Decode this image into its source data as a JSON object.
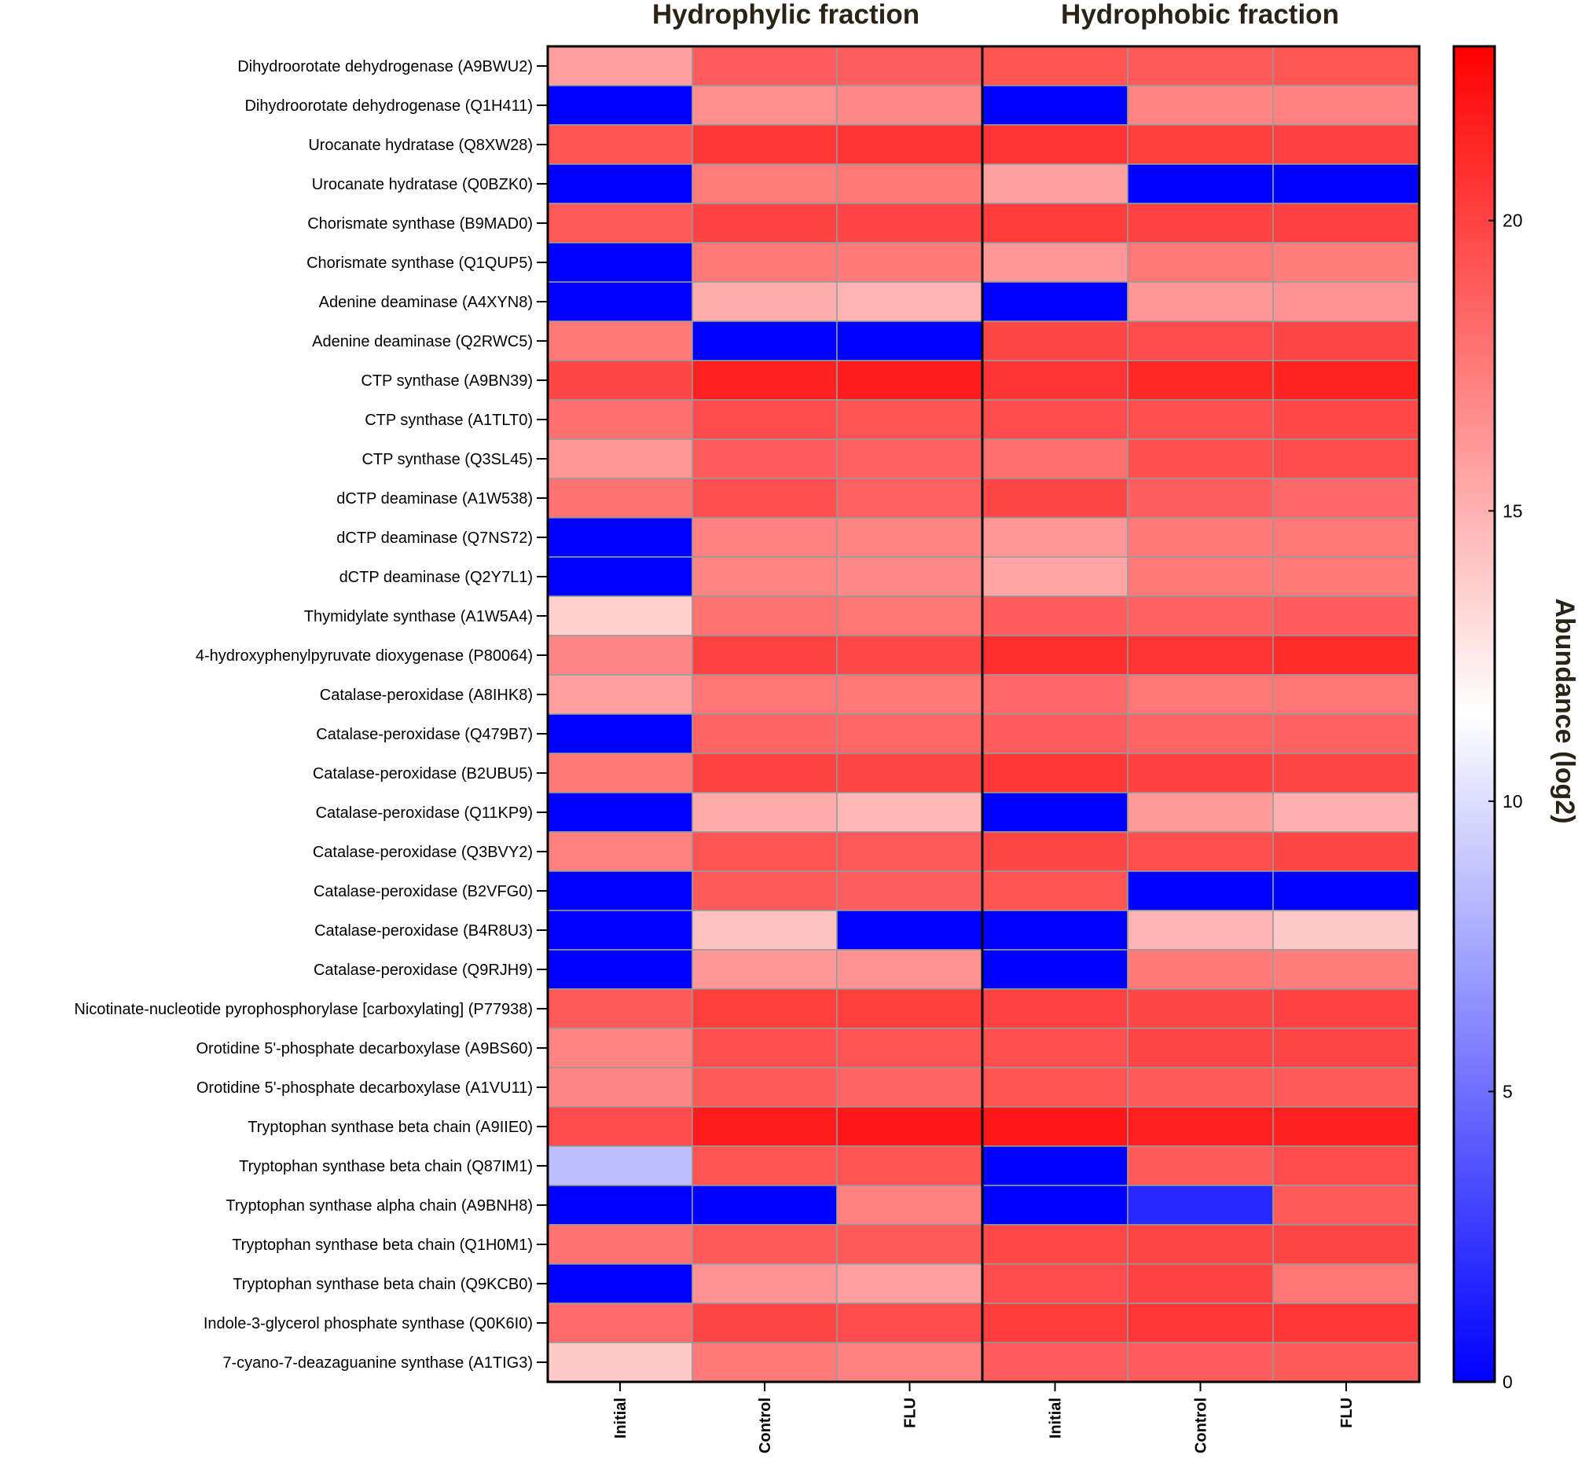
{
  "colors": {
    "low": "#0000ff",
    "mid": "#ffffff",
    "high": "#ff0000",
    "cell_border": "#999999",
    "frame": "#000000"
  },
  "chart_data": {
    "type": "heatmap",
    "groups": [
      {
        "name": "Hydrophylic fraction",
        "columns": [
          "Initial",
          "Control",
          "FLU"
        ]
      },
      {
        "name": "Hydrophobic fraction",
        "columns": [
          "Initial",
          "Control",
          "FLU"
        ]
      }
    ],
    "columns": [
      "Initial",
      "Control",
      "FLU",
      "Initial",
      "Control",
      "FLU"
    ],
    "rows": [
      "Dihydroorotate dehydrogenase (A9BWU2)",
      "Dihydroorotate dehydrogenase (Q1H411)",
      "Urocanate hydratase (Q8XW28)",
      "Urocanate hydratase (Q0BZK0)",
      "Chorismate synthase (B9MAD0)",
      "Chorismate synthase (Q1QUP5)",
      "Adenine deaminase (A4XYN8)",
      "Adenine deaminase (Q2RWC5)",
      "CTP synthase (A9BN39)",
      "CTP synthase (A1TLT0)",
      "CTP synthase (Q3SL45)",
      "dCTP deaminase (A1W538)",
      "dCTP deaminase (Q7NS72)",
      "dCTP deaminase (Q2Y7L1)",
      "Thymidylate synthase (A1W5A4)",
      "4-hydroxyphenylpyruvate dioxygenase (P80064)",
      "Catalase-peroxidase (A8IHK8)",
      "Catalase-peroxidase (Q479B7)",
      "Catalase-peroxidase (B2UBU5)",
      "Catalase-peroxidase (Q11KP9)",
      "Catalase-peroxidase (Q3BVY2)",
      "Catalase-peroxidase (B2VFG0)",
      "Catalase-peroxidase (B4R8U3)",
      "Catalase-peroxidase (Q9RJH9)",
      "Nicotinate-nucleotide pyrophosphorylase [carboxylating] (P77938)",
      "Orotidine 5'-phosphate decarboxylase (A9BS60)",
      "Orotidine 5'-phosphate decarboxylase (A1VU11)",
      "Tryptophan synthase beta chain (A9IIE0)",
      "Tryptophan synthase beta chain (Q87IM1)",
      "Tryptophan synthase alpha chain (A9BNH8)",
      "Tryptophan synthase beta chain (Q1H0M1)",
      "Tryptophan synthase beta chain (Q9KCB0)",
      "Indole-3-glycerol phosphate synthase (Q0K6I0)",
      "7-cyano-7-deazaguanine synthase (A1TIG3)"
    ],
    "values": [
      [
        15.8,
        18.8,
        18.7,
        19.2,
        19.0,
        19.1
      ],
      [
        0,
        16.6,
        16.8,
        0,
        17.0,
        17.2
      ],
      [
        19.3,
        20.5,
        20.6,
        20.6,
        20.2,
        20.1
      ],
      [
        0,
        17.4,
        17.6,
        15.8,
        0,
        0
      ],
      [
        19.0,
        20.0,
        19.9,
        20.3,
        20.0,
        20.1
      ],
      [
        0,
        17.6,
        17.5,
        16.1,
        17.6,
        17.3
      ],
      [
        0,
        15.2,
        14.9,
        0,
        16.2,
        16.4
      ],
      [
        17.6,
        0,
        0,
        19.8,
        19.6,
        19.8
      ],
      [
        19.8,
        21.5,
        21.7,
        20.6,
        21.2,
        21.4
      ],
      [
        17.9,
        19.6,
        19.3,
        19.6,
        19.5,
        19.7
      ],
      [
        16.2,
        18.8,
        18.6,
        18.0,
        19.4,
        19.6
      ],
      [
        17.8,
        19.5,
        18.6,
        19.8,
        18.7,
        18.3
      ],
      [
        0,
        17.2,
        17.0,
        16.2,
        17.5,
        17.6
      ],
      [
        0,
        17.0,
        16.8,
        15.6,
        17.5,
        17.5
      ],
      [
        13.6,
        17.8,
        17.7,
        18.8,
        18.6,
        18.8
      ],
      [
        16.9,
        20.0,
        19.7,
        20.9,
        20.6,
        21.0
      ],
      [
        15.8,
        17.7,
        17.6,
        18.3,
        17.6,
        17.7
      ],
      [
        0,
        18.5,
        18.4,
        18.8,
        18.5,
        18.6
      ],
      [
        17.6,
        20.0,
        19.8,
        20.5,
        20.1,
        19.8
      ],
      [
        0,
        15.3,
        14.8,
        0,
        16.0,
        15.1
      ],
      [
        17.2,
        19.2,
        19.0,
        19.8,
        19.5,
        19.8
      ],
      [
        0,
        18.9,
        18.7,
        19.2,
        0,
        0
      ],
      [
        0,
        14.2,
        0,
        0,
        14.9,
        14.0
      ],
      [
        0,
        16.1,
        16.4,
        0,
        17.5,
        17.3
      ],
      [
        19.0,
        20.2,
        20.2,
        20.0,
        19.8,
        20.0
      ],
      [
        17.0,
        19.4,
        19.2,
        19.5,
        19.8,
        19.8
      ],
      [
        16.9,
        18.9,
        18.5,
        19.3,
        19.0,
        19.0
      ],
      [
        19.6,
        21.8,
        21.9,
        22.0,
        21.6,
        21.5
      ],
      [
        8.6,
        19.3,
        19.2,
        0,
        18.9,
        19.6
      ],
      [
        0,
        0,
        17.2,
        0,
        1.8,
        18.9
      ],
      [
        17.8,
        19.0,
        18.9,
        19.7,
        19.8,
        19.8
      ],
      [
        0,
        16.4,
        15.8,
        19.6,
        20.0,
        17.7
      ],
      [
        18.2,
        19.8,
        19.6,
        20.3,
        20.5,
        20.5
      ],
      [
        13.9,
        17.5,
        17.2,
        18.8,
        18.8,
        18.9
      ]
    ],
    "colorbar": {
      "title": "Abundance (log2)",
      "range": [
        0,
        23
      ],
      "ticks": [
        0,
        5,
        10,
        15,
        20
      ]
    }
  }
}
